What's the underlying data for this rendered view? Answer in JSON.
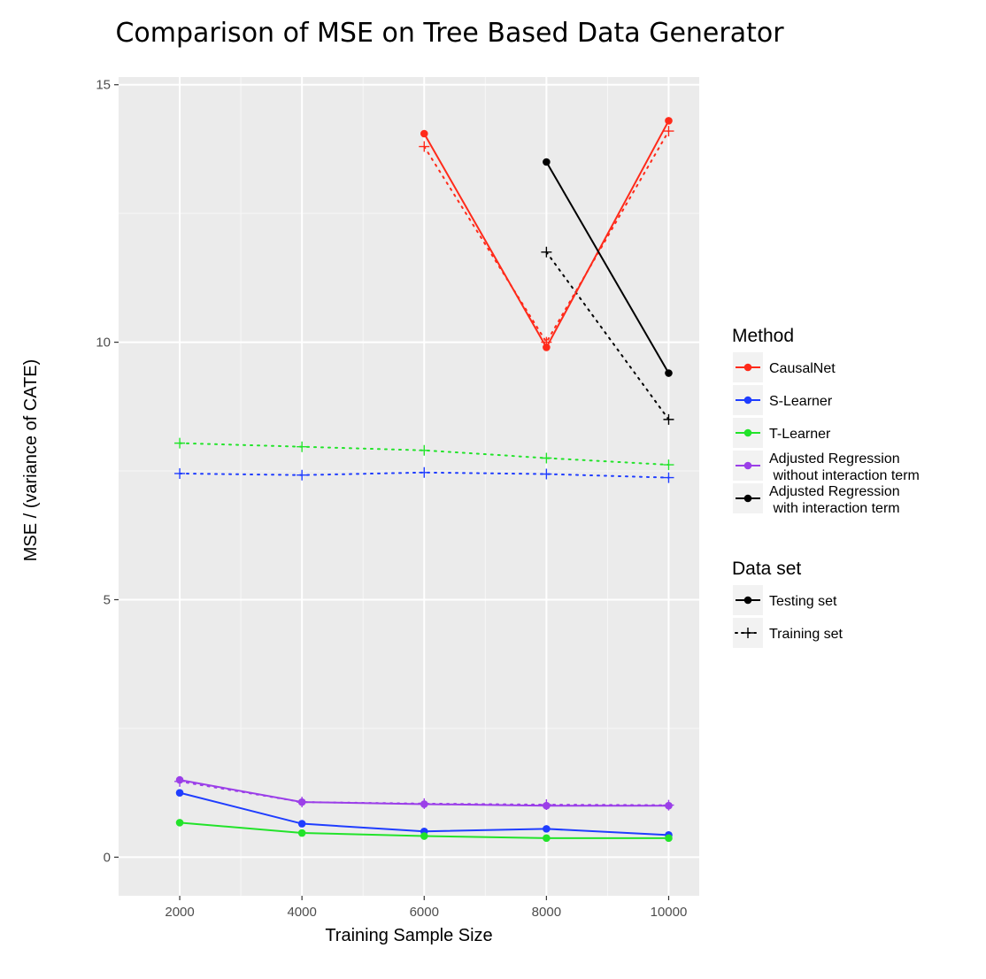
{
  "chart_data": {
    "type": "line",
    "title": "Comparison of MSE on Tree Based Data Generator",
    "xlabel": "Training Sample Size",
    "ylabel": "MSE / (variance of CATE)",
    "xlim": [
      1000,
      10500
    ],
    "ylim": [
      -0.75,
      15.15
    ],
    "x_ticks": [
      2000,
      4000,
      6000,
      8000,
      10000
    ],
    "x_tick_labels": [
      "2000",
      "4000",
      "6000",
      "8000",
      "10000"
    ],
    "y_ticks": [
      0,
      5,
      10,
      15
    ],
    "y_tick_labels": [
      "0",
      "5",
      "10",
      "15"
    ],
    "grid": true,
    "legend_position": "right",
    "method_legend": {
      "title": "Method",
      "entries": [
        {
          "key": "causalnet",
          "lines": [
            "CausalNet"
          ],
          "color": "#ff2a1a"
        },
        {
          "key": "slearner",
          "lines": [
            "S-Learner"
          ],
          "color": "#1f3dff"
        },
        {
          "key": "tlearner",
          "lines": [
            "T-Learner"
          ],
          "color": "#22e32a"
        },
        {
          "key": "adj_no",
          "lines": [
            "Adjusted Regression",
            " without interaction term"
          ],
          "color": "#9b3fe8"
        },
        {
          "key": "adj_with",
          "lines": [
            "Adjusted Regression",
            " with interaction term"
          ],
          "color": "#000000"
        }
      ]
    },
    "dataset_legend": {
      "title": "Data set",
      "entries": [
        {
          "key": "testing",
          "label": "Testing set",
          "style": "solid"
        },
        {
          "key": "training",
          "label": "Training set",
          "style": "dotted"
        }
      ]
    },
    "series": [
      {
        "method": "CausalNet",
        "dataset": "Testing set",
        "color": "#ff2a1a",
        "x": [
          6000,
          8000,
          10000
        ],
        "y": [
          14.05,
          9.9,
          14.3
        ]
      },
      {
        "method": "CausalNet",
        "dataset": "Training set",
        "color": "#ff2a1a",
        "x": [
          6000,
          8000,
          10000
        ],
        "y": [
          13.8,
          10.0,
          14.1
        ]
      },
      {
        "method": "S-Learner",
        "dataset": "Testing set",
        "color": "#1f3dff",
        "x": [
          2000,
          4000,
          6000,
          8000,
          10000
        ],
        "y": [
          1.25,
          0.65,
          0.5,
          0.55,
          0.43
        ]
      },
      {
        "method": "S-Learner",
        "dataset": "Training set",
        "color": "#1f3dff",
        "x": [
          2000,
          4000,
          6000,
          8000,
          10000
        ],
        "y": [
          7.45,
          7.42,
          7.47,
          7.44,
          7.37
        ]
      },
      {
        "method": "T-Learner",
        "dataset": "Testing set",
        "color": "#22e32a",
        "x": [
          2000,
          4000,
          6000,
          8000,
          10000
        ],
        "y": [
          0.67,
          0.47,
          0.41,
          0.37,
          0.37
        ]
      },
      {
        "method": "T-Learner",
        "dataset": "Training set",
        "color": "#22e32a",
        "x": [
          2000,
          4000,
          6000,
          8000,
          10000
        ],
        "y": [
          8.04,
          7.97,
          7.9,
          7.75,
          7.62
        ]
      },
      {
        "method": "Adjusted Regression without interaction term",
        "dataset": "Testing set",
        "color": "#9b3fe8",
        "x": [
          2000,
          4000,
          6000,
          8000,
          10000
        ],
        "y": [
          1.5,
          1.07,
          1.03,
          1.0,
          1.0
        ]
      },
      {
        "method": "Adjusted Regression without interaction term",
        "dataset": "Training set",
        "color": "#9b3fe8",
        "x": [
          2000,
          4000,
          6000,
          8000,
          10000
        ],
        "y": [
          1.47,
          1.07,
          1.04,
          1.02,
          1.01
        ]
      },
      {
        "method": "Adjusted Regression with interaction term",
        "dataset": "Testing set",
        "color": "#000000",
        "x": [
          8000,
          10000
        ],
        "y": [
          13.5,
          9.4
        ]
      },
      {
        "method": "Adjusted Regression with interaction term",
        "dataset": "Training set",
        "color": "#000000",
        "x": [
          8000,
          10000
        ],
        "y": [
          11.75,
          8.5
        ]
      }
    ]
  }
}
